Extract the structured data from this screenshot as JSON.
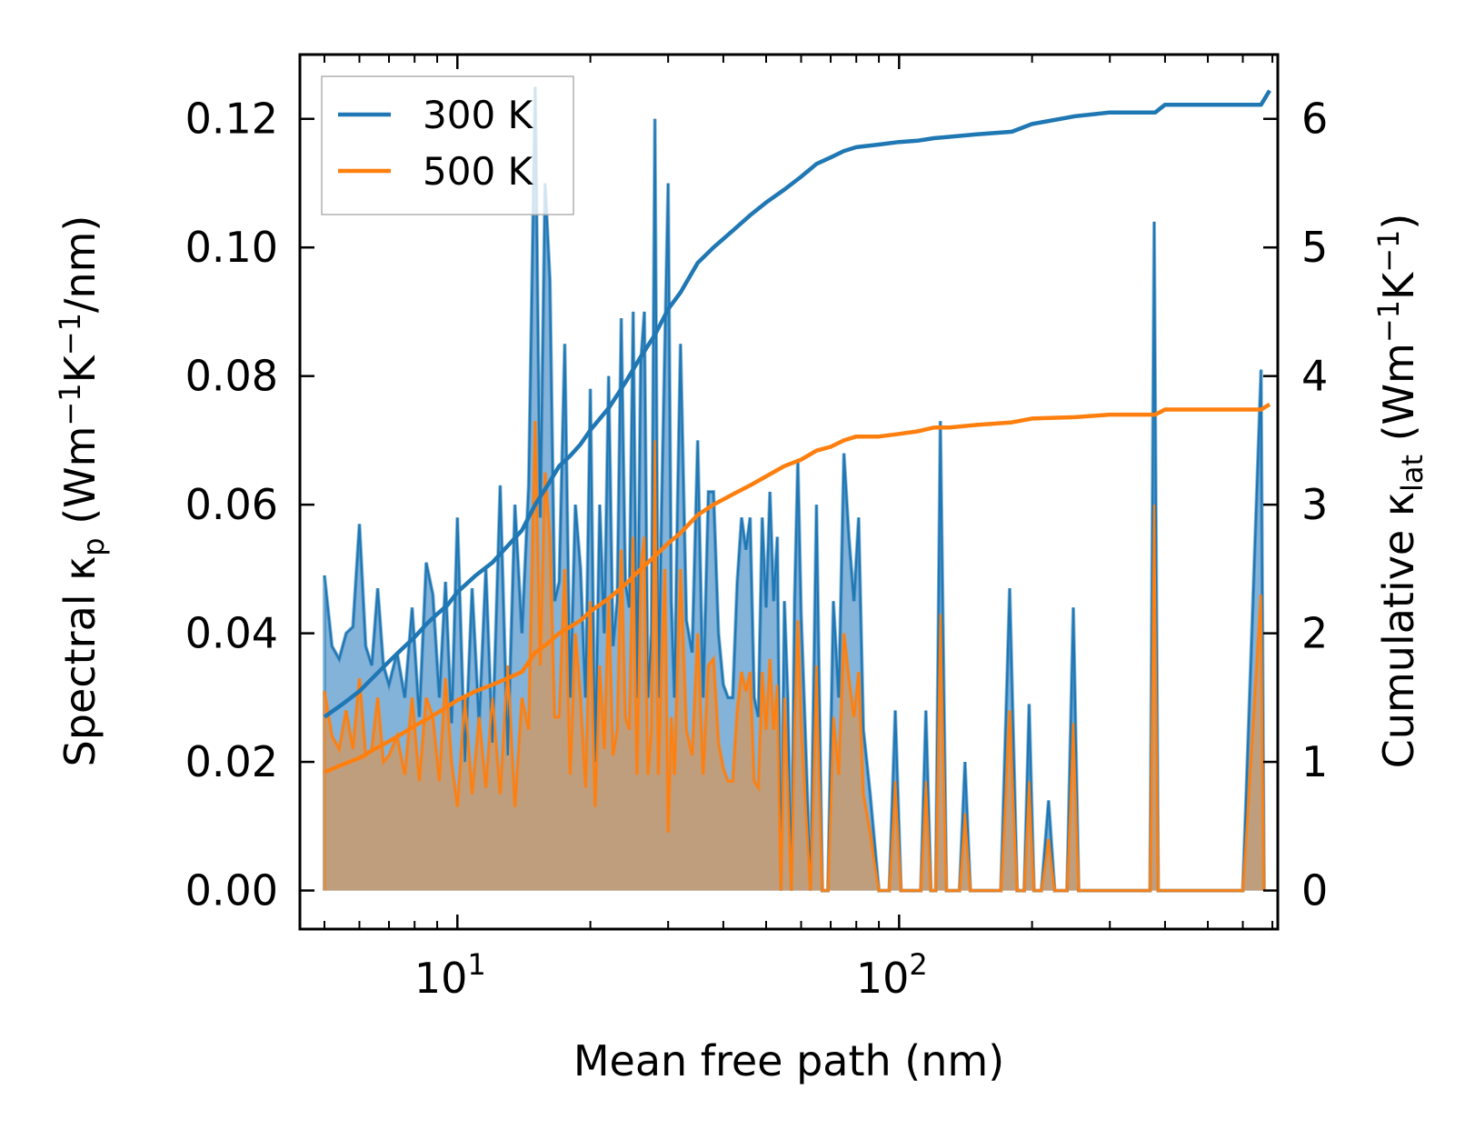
{
  "chart_data": {
    "type": "line",
    "xlabel": "Mean free path (nm)",
    "ylabel_left": {
      "main": "Spectral κ",
      "sub": "p",
      "units_open": " (Wm",
      "exp1": "−1",
      "units_mid": "K",
      "exp2": "−1",
      "units_close": "/nm)"
    },
    "ylabel_right": {
      "main": "Cumulative κ",
      "sub": "lat",
      "units_open": " (Wm",
      "exp1": "−1",
      "units_mid": "K",
      "exp2": "−1",
      "units_close": ")"
    },
    "x_scale": "log",
    "xlim": [
      4.4,
      720
    ],
    "ylim_left": [
      -0.006,
      0.13
    ],
    "ylim_right": [
      -0.3,
      6.5
    ],
    "x_ticks": [
      {
        "base": "10",
        "exp": "1",
        "value": 10
      },
      {
        "base": "10",
        "exp": "2",
        "value": 100
      }
    ],
    "y_ticks_left": [
      "0.00",
      "0.02",
      "0.04",
      "0.06",
      "0.08",
      "0.10",
      "0.12"
    ],
    "y_ticks_right": [
      "0",
      "1",
      "2",
      "3",
      "4",
      "5",
      "6"
    ],
    "legend_position": "upper left",
    "colors": {
      "300K": "#1f77b4",
      "500K": "#ff7f0e",
      "fill_300K": "#6fa6d3",
      "fill_500K": "#c59b73"
    },
    "series": [
      {
        "name": "300 K",
        "spectral_x": [
          5.0,
          5.2,
          5.4,
          5.6,
          5.8,
          6.0,
          6.2,
          6.4,
          6.6,
          6.8,
          7.0,
          7.3,
          7.6,
          7.9,
          8.2,
          8.5,
          8.8,
          9.1,
          9.4,
          9.7,
          10.0,
          10.4,
          10.8,
          11.2,
          11.6,
          12.0,
          12.5,
          13.0,
          13.5,
          14.0,
          14.5,
          15.0,
          15.4,
          15.8,
          16.2,
          16.6,
          17.0,
          17.5,
          18.0,
          18.5,
          19.0,
          19.5,
          20.0,
          20.5,
          21.0,
          21.5,
          22.0,
          22.5,
          23.0,
          23.5,
          24.0,
          24.5,
          25.0,
          25.5,
          26.0,
          26.5,
          27.0,
          27.5,
          28.0,
          28.5,
          29.0,
          29.5,
          30.0,
          30.5,
          31.0,
          31.5,
          32.0,
          33.0,
          34.0,
          35.0,
          36.0,
          37.0,
          38.0,
          39.0,
          40.0,
          41.0,
          42.0,
          43.0,
          44.0,
          45.0,
          46.0,
          47.0,
          48.0,
          49.0,
          50.0,
          51.0,
          52.0,
          53.0,
          54.0,
          55.0,
          56.0,
          57.0,
          58.0,
          59.0,
          60.0,
          61.0,
          62.0,
          63.0,
          65.0,
          67.0,
          69.0,
          71.0,
          73.0,
          75.0,
          77.0,
          79.0,
          81.0,
          83.0,
          86.0,
          90.0,
          95.0,
          98.0,
          101.0,
          106.0,
          112.0,
          115.0,
          118.0,
          121.0,
          124.0,
          128.0,
          133.0,
          137.0,
          141.0,
          145.0,
          150.0,
          160.0,
          170.0,
          178.0,
          185.0,
          192.0,
          197.0,
          202.0,
          210.0,
          218.0,
          225.0,
          232.0,
          240.0,
          248.0,
          255.0,
          262.0,
          300.0,
          370.0,
          378.0,
          386.0,
          394.0,
          402.0,
          600.0,
          660.0,
          670.0,
          680.0,
          690.0
        ],
        "spectral_y": [
          0.049,
          0.038,
          0.036,
          0.04,
          0.041,
          0.057,
          0.038,
          0.035,
          0.047,
          0.035,
          0.032,
          0.037,
          0.03,
          0.044,
          0.027,
          0.051,
          0.046,
          0.03,
          0.048,
          0.026,
          0.058,
          0.02,
          0.047,
          0.026,
          0.05,
          0.023,
          0.063,
          0.021,
          0.06,
          0.04,
          0.063,
          0.125,
          0.058,
          0.11,
          0.095,
          0.045,
          0.048,
          0.085,
          0.03,
          0.06,
          0.05,
          0.03,
          0.078,
          0.02,
          0.06,
          0.04,
          0.08,
          0.038,
          0.045,
          0.089,
          0.048,
          0.044,
          0.09,
          0.03,
          0.082,
          0.09,
          0.03,
          0.04,
          0.12,
          0.03,
          0.06,
          0.085,
          0.11,
          0.045,
          0.03,
          0.06,
          0.085,
          0.042,
          0.037,
          0.07,
          0.03,
          0.062,
          0.062,
          0.04,
          0.032,
          0.03,
          0.03,
          0.048,
          0.058,
          0.053,
          0.058,
          0.03,
          0.027,
          0.058,
          0.044,
          0.062,
          0.045,
          0.055,
          0.0,
          0.045,
          0.03,
          0.0,
          0.045,
          0.067,
          0.043,
          0.029,
          0.015,
          0.0,
          0.06,
          0.0,
          0.0,
          0.045,
          0.03,
          0.068,
          0.055,
          0.045,
          0.058,
          0.025,
          0.015,
          0.0,
          0.0,
          0.028,
          0.0,
          0.0,
          0.0,
          0.028,
          0.0,
          0.0,
          0.073,
          0.0,
          0.0,
          0.0,
          0.02,
          0.0,
          0.0,
          0.0,
          0.0,
          0.047,
          0.0,
          0.0,
          0.029,
          0.0,
          0.0,
          0.014,
          0.0,
          0.0,
          0.0,
          0.044,
          0.0,
          0.0,
          0.0,
          0.0,
          0.104,
          0.0,
          0.0,
          0.0,
          0.0,
          0.081,
          0.0
        ],
        "cumulative_x": [
          5.0,
          5.5,
          6.0,
          6.5,
          7.0,
          7.5,
          8.0,
          8.5,
          9.0,
          9.5,
          10.0,
          11.0,
          12.0,
          13.0,
          14.0,
          15.0,
          16.0,
          17.0,
          18.0,
          19.0,
          20.0,
          22.0,
          24.0,
          26.0,
          28.0,
          30.0,
          32.0,
          35.0,
          38.0,
          42.0,
          46.0,
          50.0,
          55.0,
          60.0,
          65.0,
          70.0,
          75.0,
          80.0,
          90.0,
          100.0,
          110.0,
          120.0,
          130.0,
          150.0,
          180.0,
          200.0,
          250.0,
          300.0,
          380.0,
          400.0,
          660.0,
          690.0
        ],
        "cumulative_y": [
          1.35,
          1.45,
          1.55,
          1.67,
          1.78,
          1.88,
          1.97,
          2.07,
          2.15,
          2.22,
          2.32,
          2.45,
          2.55,
          2.68,
          2.8,
          3.0,
          3.15,
          3.3,
          3.38,
          3.47,
          3.58,
          3.75,
          3.95,
          4.15,
          4.32,
          4.52,
          4.65,
          4.88,
          5.0,
          5.13,
          5.25,
          5.35,
          5.45,
          5.55,
          5.65,
          5.7,
          5.75,
          5.78,
          5.8,
          5.82,
          5.83,
          5.85,
          5.86,
          5.88,
          5.9,
          5.96,
          6.02,
          6.05,
          6.05,
          6.11,
          6.11,
          6.22
        ]
      },
      {
        "name": "500 K",
        "spectral_x": [
          5.0,
          5.2,
          5.4,
          5.6,
          5.8,
          6.0,
          6.2,
          6.4,
          6.6,
          6.8,
          7.0,
          7.3,
          7.6,
          7.9,
          8.2,
          8.5,
          8.8,
          9.1,
          9.4,
          9.7,
          10.0,
          10.4,
          10.8,
          11.2,
          11.6,
          12.0,
          12.5,
          13.0,
          13.5,
          14.0,
          14.5,
          15.0,
          15.4,
          15.8,
          16.2,
          16.6,
          17.0,
          17.5,
          18.0,
          18.5,
          19.0,
          19.5,
          20.0,
          20.5,
          21.0,
          21.5,
          22.0,
          22.5,
          23.0,
          23.5,
          24.0,
          24.5,
          25.0,
          25.5,
          26.0,
          26.5,
          27.0,
          27.5,
          28.0,
          28.5,
          29.0,
          29.5,
          30.0,
          30.5,
          31.0,
          31.5,
          32.0,
          33.0,
          34.0,
          35.0,
          36.0,
          37.0,
          38.0,
          39.0,
          40.0,
          41.0,
          42.0,
          43.0,
          44.0,
          45.0,
          46.0,
          47.0,
          48.0,
          49.0,
          50.0,
          51.0,
          52.0,
          53.0,
          54.0,
          55.0,
          56.0,
          57.0,
          58.0,
          59.0,
          60.0,
          61.0,
          62.0,
          63.0,
          65.0,
          67.0,
          69.0,
          71.0,
          73.0,
          75.0,
          77.0,
          79.0,
          81.0,
          83.0,
          86.0,
          90.0,
          95.0,
          98.0,
          101.0,
          106.0,
          112.0,
          115.0,
          118.0,
          121.0,
          124.0,
          128.0,
          133.0,
          137.0,
          141.0,
          145.0,
          150.0,
          160.0,
          170.0,
          178.0,
          185.0,
          192.0,
          197.0,
          202.0,
          210.0,
          218.0,
          225.0,
          232.0,
          240.0,
          248.0,
          255.0,
          262.0,
          300.0,
          370.0,
          378.0,
          386.0,
          394.0,
          402.0,
          600.0,
          660.0,
          670.0,
          680.0,
          690.0
        ],
        "spectral_y": [
          0.031,
          0.024,
          0.022,
          0.028,
          0.022,
          0.033,
          0.021,
          0.022,
          0.03,
          0.02,
          0.021,
          0.024,
          0.018,
          0.03,
          0.017,
          0.03,
          0.027,
          0.017,
          0.033,
          0.02,
          0.013,
          0.03,
          0.015,
          0.027,
          0.016,
          0.03,
          0.015,
          0.035,
          0.013,
          0.03,
          0.025,
          0.073,
          0.035,
          0.065,
          0.055,
          0.027,
          0.027,
          0.05,
          0.018,
          0.04,
          0.03,
          0.016,
          0.045,
          0.013,
          0.035,
          0.022,
          0.045,
          0.021,
          0.025,
          0.053,
          0.027,
          0.025,
          0.055,
          0.018,
          0.05,
          0.055,
          0.018,
          0.025,
          0.07,
          0.018,
          0.035,
          0.05,
          0.009,
          0.027,
          0.018,
          0.035,
          0.05,
          0.025,
          0.021,
          0.04,
          0.018,
          0.035,
          0.036,
          0.023,
          0.019,
          0.017,
          0.017,
          0.028,
          0.034,
          0.031,
          0.034,
          0.017,
          0.016,
          0.034,
          0.025,
          0.036,
          0.025,
          0.032,
          0.0,
          0.03,
          0.017,
          0.0,
          0.027,
          0.042,
          0.026,
          0.017,
          0.009,
          0.0,
          0.035,
          0.0,
          0.0,
          0.027,
          0.018,
          0.04,
          0.033,
          0.027,
          0.034,
          0.015,
          0.009,
          0.0,
          0.0,
          0.017,
          0.0,
          0.0,
          0.0,
          0.017,
          0.0,
          0.0,
          0.043,
          0.0,
          0.0,
          0.0,
          0.012,
          0.0,
          0.0,
          0.0,
          0.0,
          0.028,
          0.0,
          0.0,
          0.017,
          0.0,
          0.0,
          0.008,
          0.0,
          0.0,
          0.0,
          0.026,
          0.0,
          0.0,
          0.0,
          0.0,
          0.06,
          0.0,
          0.0,
          0.0,
          0.0,
          0.046,
          0.0
        ],
        "cumulative_x": [
          5.0,
          5.5,
          6.0,
          6.5,
          7.0,
          7.5,
          8.0,
          8.5,
          9.0,
          9.5,
          10.0,
          11.0,
          12.0,
          13.0,
          14.0,
          15.0,
          16.0,
          17.0,
          18.0,
          19.0,
          20.0,
          22.0,
          24.0,
          26.0,
          28.0,
          30.0,
          32.0,
          35.0,
          38.0,
          42.0,
          46.0,
          50.0,
          55.0,
          60.0,
          65.0,
          70.0,
          75.0,
          80.0,
          90.0,
          100.0,
          110.0,
          120.0,
          130.0,
          150.0,
          180.0,
          200.0,
          250.0,
          300.0,
          380.0,
          400.0,
          660.0,
          690.0
        ],
        "cumulative_y": [
          0.92,
          0.98,
          1.03,
          1.1,
          1.16,
          1.22,
          1.28,
          1.33,
          1.38,
          1.43,
          1.48,
          1.55,
          1.6,
          1.65,
          1.7,
          1.85,
          1.92,
          2.0,
          2.05,
          2.1,
          2.17,
          2.27,
          2.38,
          2.5,
          2.6,
          2.7,
          2.78,
          2.92,
          3.0,
          3.08,
          3.15,
          3.22,
          3.3,
          3.35,
          3.42,
          3.45,
          3.5,
          3.53,
          3.53,
          3.55,
          3.57,
          3.6,
          3.6,
          3.62,
          3.64,
          3.67,
          3.68,
          3.7,
          3.7,
          3.74,
          3.74,
          3.78
        ]
      }
    ]
  }
}
